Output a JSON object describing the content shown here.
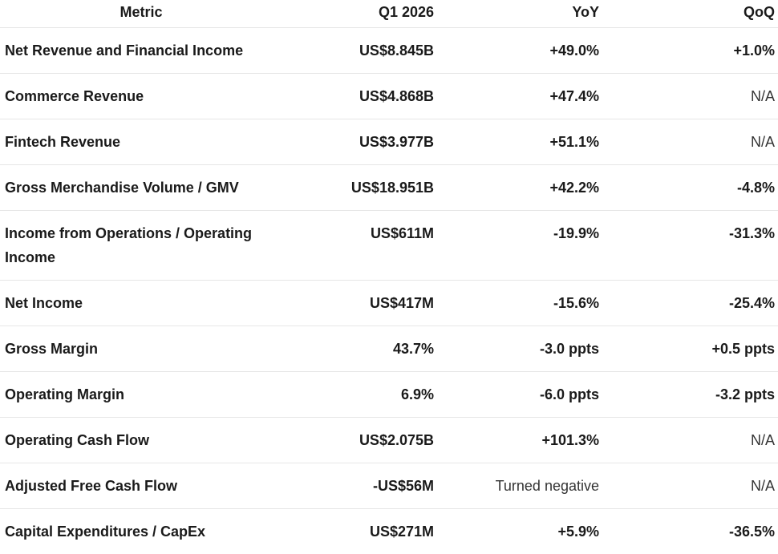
{
  "table": {
    "columns": [
      "Metric",
      "Q1 2026",
      "YoY",
      "QoQ"
    ],
    "rows": [
      [
        "Net Revenue and Financial Income",
        "US$8.845B",
        "+49.0%",
        "+1.0%"
      ],
      [
        "Commerce Revenue",
        "US$4.868B",
        "+47.4%",
        "N/A"
      ],
      [
        "Fintech Revenue",
        "US$3.977B",
        "+51.1%",
        "N/A"
      ],
      [
        "Gross Merchandise Volume / GMV",
        "US$18.951B",
        "+42.2%",
        "-4.8%"
      ],
      [
        "Income from Operations / Operating Income",
        "US$611M",
        "-19.9%",
        "-31.3%"
      ],
      [
        "Net Income",
        "US$417M",
        "-15.6%",
        "-25.4%"
      ],
      [
        "Gross Margin",
        "43.7%",
        "-3.0 ppts",
        "+0.5 ppts"
      ],
      [
        "Operating Margin",
        "6.9%",
        "-6.0 ppts",
        "-3.2 ppts"
      ],
      [
        "Operating Cash Flow",
        "US$2.075B",
        "+101.3%",
        "N/A"
      ],
      [
        "Adjusted Free Cash Flow",
        "-US$56M",
        "Turned negative",
        "N/A"
      ],
      [
        "Capital Expenditures / CapEx",
        "US$271M",
        "+5.9%",
        "-36.5%"
      ]
    ]
  }
}
